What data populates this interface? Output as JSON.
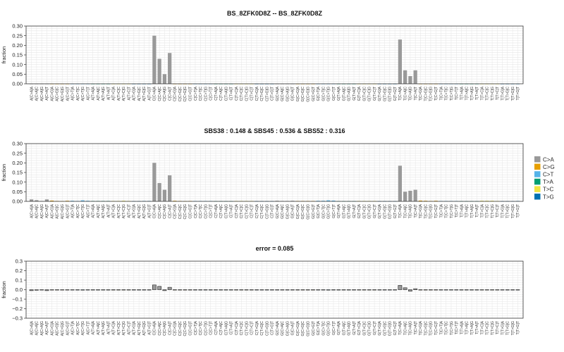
{
  "colors": {
    "C>A": "#999999",
    "C>G": "#E69F00",
    "C>T": "#56B4E9",
    "T>A": "#009E73",
    "T>C": "#F0E442",
    "T>G": "#0072B2",
    "grid": "#e6e6e6",
    "frame": "#333333"
  },
  "legend": {
    "labels": [
      "C>A",
      "C>G",
      "C>T",
      "T>A",
      "T>C",
      "T>G"
    ],
    "placement": "right"
  },
  "chart_data": [
    {
      "type": "bar",
      "title": "BS_8ZFK0D8Z -- BS_8ZFK0D8Z",
      "xlabel": "",
      "ylabel": "fraction",
      "ylim": [
        0,
        0.3
      ],
      "yticks": [
        "0.00",
        "0.05",
        "0.10",
        "0.15",
        "0.20",
        "0.25",
        "0.30"
      ],
      "grid": true,
      "categories": [
        "A[C>A]A",
        "A[C>A]C",
        "A[C>A]G",
        "A[C>A]T",
        "A[C>G]A",
        "A[C>G]C",
        "A[C>G]G",
        "A[C>G]T",
        "A[C>T]A",
        "A[C>T]C",
        "A[C>T]G",
        "A[C>T]T",
        "A[T>A]A",
        "A[T>A]C",
        "A[T>A]G",
        "A[T>A]T",
        "A[T>C]A",
        "A[T>C]C",
        "A[T>C]G",
        "A[T>C]T",
        "A[T>G]A",
        "A[T>G]C",
        "A[T>G]G",
        "A[T>G]T",
        "C[C>A]A",
        "C[C>A]C",
        "C[C>A]G",
        "C[C>A]T",
        "C[C>G]A",
        "C[C>G]C",
        "C[C>G]G",
        "C[C>G]T",
        "C[C>T]A",
        "C[C>T]C",
        "C[C>T]G",
        "C[C>T]T",
        "C[T>A]A",
        "C[T>A]C",
        "C[T>A]G",
        "C[T>A]T",
        "C[T>C]A",
        "C[T>C]C",
        "C[T>C]G",
        "C[T>C]T",
        "C[T>G]A",
        "C[T>G]C",
        "C[T>G]G",
        "C[T>G]T",
        "G[C>A]A",
        "G[C>A]C",
        "G[C>A]G",
        "G[C>A]T",
        "G[C>G]A",
        "G[C>G]C",
        "G[C>G]G",
        "G[C>G]T",
        "G[C>T]A",
        "G[C>T]C",
        "G[C>T]G",
        "G[C>T]T",
        "G[T>A]A",
        "G[T>A]C",
        "G[T>A]G",
        "G[T>A]T",
        "G[T>C]A",
        "G[T>C]C",
        "G[T>C]G",
        "G[T>C]T",
        "G[T>G]A",
        "G[T>G]C",
        "G[T>G]G",
        "G[T>G]T",
        "T[C>A]A",
        "T[C>A]C",
        "T[C>A]G",
        "T[C>A]T",
        "T[C>G]A",
        "T[C>G]C",
        "T[C>G]G",
        "T[C>G]T",
        "T[C>T]A",
        "T[C>T]C",
        "T[C>T]G",
        "T[C>T]T",
        "T[T>A]A",
        "T[T>A]C",
        "T[T>A]G",
        "T[T>A]T",
        "T[T>C]A",
        "T[T>C]C",
        "T[T>C]G",
        "T[T>C]T",
        "T[T>G]A",
        "T[T>G]C",
        "T[T>G]G",
        "T[T>G]T"
      ],
      "values": [
        0,
        0,
        0,
        0,
        0,
        0,
        0,
        0,
        0,
        0,
        0,
        0,
        0,
        0,
        0,
        0,
        0,
        0,
        0,
        0,
        0,
        0,
        0,
        0,
        0.25,
        0.13,
        0.05,
        0.16,
        0,
        0,
        0,
        0,
        0,
        0,
        0,
        0,
        0,
        0,
        0,
        0,
        0,
        0,
        0,
        0,
        0,
        0,
        0,
        0,
        0,
        0,
        0,
        0,
        0,
        0,
        0,
        0,
        0,
        0,
        0,
        0,
        0,
        0,
        0,
        0,
        0,
        0,
        0,
        0,
        0,
        0,
        0,
        0,
        0.23,
        0.07,
        0.04,
        0.07,
        0,
        0,
        0,
        0,
        0,
        0,
        0,
        0,
        0,
        0,
        0,
        0,
        0,
        0,
        0,
        0,
        0,
        0,
        0,
        0
      ]
    },
    {
      "type": "bar",
      "title": "SBS38 : 0.148 & SBS45 : 0.536 & SBS52 : 0.316",
      "xlabel": "",
      "ylabel": "fraction",
      "ylim": [
        0,
        0.3
      ],
      "yticks": [
        "0.00",
        "0.05",
        "0.10",
        "0.15",
        "0.20",
        "0.25",
        "0.30"
      ],
      "grid": true,
      "categories": [
        "A[C>A]A",
        "A[C>A]C",
        "A[C>A]G",
        "A[C>A]T",
        "A[C>G]A",
        "A[C>G]C",
        "A[C>G]G",
        "A[C>G]T",
        "A[C>T]A",
        "A[C>T]C",
        "A[C>T]G",
        "A[C>T]T",
        "A[T>A]A",
        "A[T>A]C",
        "A[T>A]G",
        "A[T>A]T",
        "A[T>C]A",
        "A[T>C]C",
        "A[T>C]G",
        "A[T>C]T",
        "A[T>G]A",
        "A[T>G]C",
        "A[T>G]G",
        "A[T>G]T",
        "C[C>A]A",
        "C[C>A]C",
        "C[C>A]G",
        "C[C>A]T",
        "C[C>G]A",
        "C[C>G]C",
        "C[C>G]G",
        "C[C>G]T",
        "C[C>T]A",
        "C[C>T]C",
        "C[C>T]G",
        "C[C>T]T",
        "C[T>A]A",
        "C[T>A]C",
        "C[T>A]G",
        "C[T>A]T",
        "C[T>C]A",
        "C[T>C]C",
        "C[T>C]G",
        "C[T>C]T",
        "C[T>G]A",
        "C[T>G]C",
        "C[T>G]G",
        "C[T>G]T",
        "G[C>A]A",
        "G[C>A]C",
        "G[C>A]G",
        "G[C>A]T",
        "G[C>G]A",
        "G[C>G]C",
        "G[C>G]G",
        "G[C>G]T",
        "G[C>T]A",
        "G[C>T]C",
        "G[C>T]G",
        "G[C>T]T",
        "G[T>A]A",
        "G[T>A]C",
        "G[T>A]G",
        "G[T>A]T",
        "G[T>C]A",
        "G[T>C]C",
        "G[T>C]G",
        "G[T>C]T",
        "G[T>G]A",
        "G[T>G]C",
        "G[T>G]G",
        "G[T>G]T",
        "T[C>A]A",
        "T[C>A]C",
        "T[C>A]G",
        "T[C>A]T",
        "T[C>G]A",
        "T[C>G]C",
        "T[C>G]G",
        "T[C>G]T",
        "T[C>T]A",
        "T[C>T]C",
        "T[C>T]G",
        "T[C>T]T",
        "T[T>A]A",
        "T[T>A]C",
        "T[T>A]G",
        "T[T>A]T",
        "T[T>C]A",
        "T[T>C]C",
        "T[T>C]G",
        "T[T>C]T",
        "T[T>G]A",
        "T[T>G]C",
        "T[T>G]G",
        "T[T>G]T"
      ],
      "values": [
        0.01,
        0.006,
        0.002,
        0.01,
        0.004,
        0.002,
        0.001,
        0.003,
        0.003,
        0.002,
        0.005,
        0.003,
        0.002,
        0.002,
        0.002,
        0.002,
        0.002,
        0.002,
        0.003,
        0.002,
        0.001,
        0.001,
        0.002,
        0.002,
        0.2,
        0.095,
        0.06,
        0.135,
        0.003,
        0.002,
        0.001,
        0.002,
        0.002,
        0.002,
        0.002,
        0.002,
        0.001,
        0.001,
        0.001,
        0.001,
        0.002,
        0.002,
        0.002,
        0.002,
        0.001,
        0.001,
        0.001,
        0.001,
        0.003,
        0.002,
        0.002,
        0.003,
        0.002,
        0.002,
        0.002,
        0.002,
        0.003,
        0.003,
        0.005,
        0.004,
        0.001,
        0.001,
        0.001,
        0.001,
        0.002,
        0.002,
        0.002,
        0.002,
        0.001,
        0.001,
        0.001,
        0.001,
        0.185,
        0.05,
        0.055,
        0.06,
        0.004,
        0.003,
        0.002,
        0.003,
        0.002,
        0.002,
        0.002,
        0.002,
        0.001,
        0.001,
        0.001,
        0.001,
        0.003,
        0.003,
        0.003,
        0.002,
        0.001,
        0.001,
        0.001,
        0.002
      ]
    },
    {
      "type": "bar",
      "title": "error = 0.085",
      "xlabel": "",
      "ylabel": "fraction",
      "ylim": [
        -0.3,
        0.3
      ],
      "yticks": [
        "−0.3",
        "−0.2",
        "−0.1",
        "0.0",
        "0.1",
        "0.2",
        "0.3"
      ],
      "grid": true,
      "categories": [
        "A[C>A]A",
        "A[C>A]C",
        "A[C>A]G",
        "A[C>A]T",
        "A[C>G]A",
        "A[C>G]C",
        "A[C>G]G",
        "A[C>G]T",
        "A[C>T]A",
        "A[C>T]C",
        "A[C>T]G",
        "A[C>T]T",
        "A[T>A]A",
        "A[T>A]C",
        "A[T>A]G",
        "A[T>A]T",
        "A[T>C]A",
        "A[T>C]C",
        "A[T>C]G",
        "A[T>C]T",
        "A[T>G]A",
        "A[T>G]C",
        "A[T>G]G",
        "A[T>G]T",
        "C[C>A]A",
        "C[C>A]C",
        "C[C>A]G",
        "C[C>A]T",
        "C[C>G]A",
        "C[C>G]C",
        "C[C>G]G",
        "C[C>G]T",
        "C[C>T]A",
        "C[C>T]C",
        "C[C>T]G",
        "C[C>T]T",
        "C[T>A]A",
        "C[T>A]C",
        "C[T>A]G",
        "C[T>A]T",
        "C[T>C]A",
        "C[T>C]C",
        "C[T>C]G",
        "C[T>C]T",
        "C[T>G]A",
        "C[T>G]C",
        "C[T>G]G",
        "C[T>G]T",
        "G[C>A]A",
        "G[C>A]C",
        "G[C>A]G",
        "G[C>A]T",
        "G[C>G]A",
        "G[C>G]C",
        "G[C>G]G",
        "G[C>G]T",
        "G[C>T]A",
        "G[C>T]C",
        "G[C>T]G",
        "G[C>T]T",
        "G[T>A]A",
        "G[T>A]C",
        "G[T>A]G",
        "G[T>A]T",
        "G[T>C]A",
        "G[T>C]C",
        "G[T>C]G",
        "G[T>C]T",
        "G[T>G]A",
        "G[T>G]C",
        "G[T>G]G",
        "G[T>G]T",
        "T[C>A]A",
        "T[C>A]C",
        "T[C>A]G",
        "T[C>A]T",
        "T[C>G]A",
        "T[C>G]C",
        "T[C>G]G",
        "T[C>G]T",
        "T[C>T]A",
        "T[C>T]C",
        "T[C>T]G",
        "T[C>T]T",
        "T[T>A]A",
        "T[T>A]C",
        "T[T>A]G",
        "T[T>A]T",
        "T[T>C]A",
        "T[T>C]C",
        "T[T>C]G",
        "T[T>C]T",
        "T[T>G]A",
        "T[T>G]C",
        "T[T>G]G",
        "T[T>G]T"
      ],
      "values": [
        -0.01,
        -0.006,
        -0.002,
        -0.01,
        -0.004,
        -0.002,
        -0.001,
        -0.003,
        -0.003,
        -0.002,
        -0.005,
        -0.003,
        -0.002,
        -0.002,
        -0.002,
        -0.002,
        -0.002,
        -0.002,
        -0.003,
        -0.002,
        -0.001,
        -0.001,
        -0.002,
        -0.002,
        0.05,
        0.035,
        -0.01,
        0.025,
        -0.003,
        -0.002,
        -0.001,
        -0.002,
        -0.002,
        -0.002,
        -0.002,
        -0.002,
        -0.001,
        -0.001,
        -0.001,
        -0.001,
        -0.002,
        -0.002,
        -0.002,
        -0.002,
        -0.001,
        -0.001,
        -0.001,
        -0.001,
        -0.003,
        -0.002,
        -0.002,
        -0.003,
        -0.002,
        -0.002,
        -0.002,
        -0.002,
        -0.003,
        -0.003,
        -0.005,
        -0.004,
        -0.001,
        -0.001,
        -0.001,
        -0.001,
        -0.002,
        -0.002,
        -0.002,
        -0.002,
        -0.001,
        -0.001,
        -0.001,
        -0.001,
        0.045,
        0.02,
        -0.015,
        0.01,
        -0.004,
        -0.003,
        -0.002,
        -0.003,
        -0.002,
        -0.002,
        -0.002,
        -0.002,
        -0.001,
        -0.001,
        -0.001,
        -0.001,
        -0.003,
        -0.003,
        -0.003,
        -0.002,
        -0.001,
        -0.001,
        -0.001,
        -0.002
      ]
    }
  ]
}
